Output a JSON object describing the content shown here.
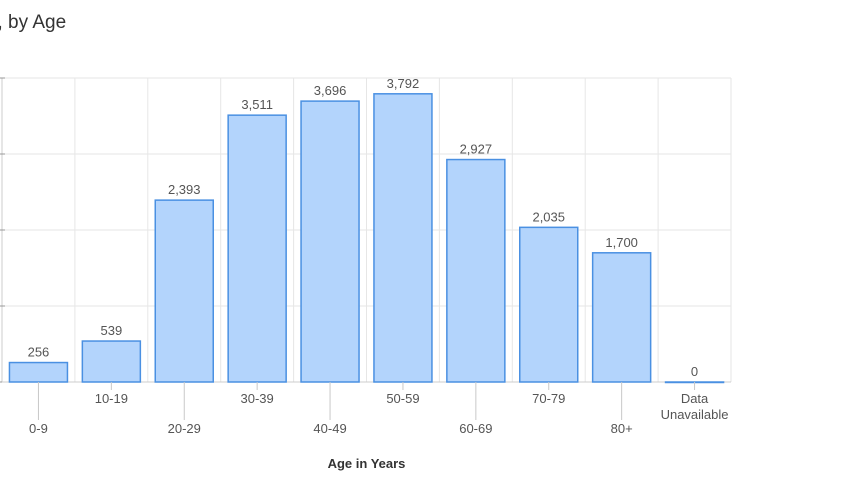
{
  "chart_data": {
    "type": "bar",
    "title": "s, by Age",
    "xlabel": "Age in Years",
    "ylabel": "",
    "categories": [
      "0-9",
      "10-19",
      "20-29",
      "30-39",
      "40-49",
      "50-59",
      "60-69",
      "70-79",
      "80+",
      "Data Unavailable"
    ],
    "values": [
      256,
      539,
      2393,
      3511,
      3696,
      3792,
      2927,
      2035,
      1700,
      0
    ],
    "data_labels": [
      "256",
      "539",
      "2,393",
      "3,511",
      "3,696",
      "3,792",
      "2,927",
      "2,035",
      "1,700",
      "0"
    ],
    "ylim": [
      0,
      4000
    ],
    "grid": true,
    "legend": "none",
    "colors": {
      "bar_fill": "#b3d4fc",
      "bar_stroke": "#4a90e2",
      "grid": "#e6e6e6",
      "axis": "#cccccc",
      "text": "#555555"
    }
  }
}
